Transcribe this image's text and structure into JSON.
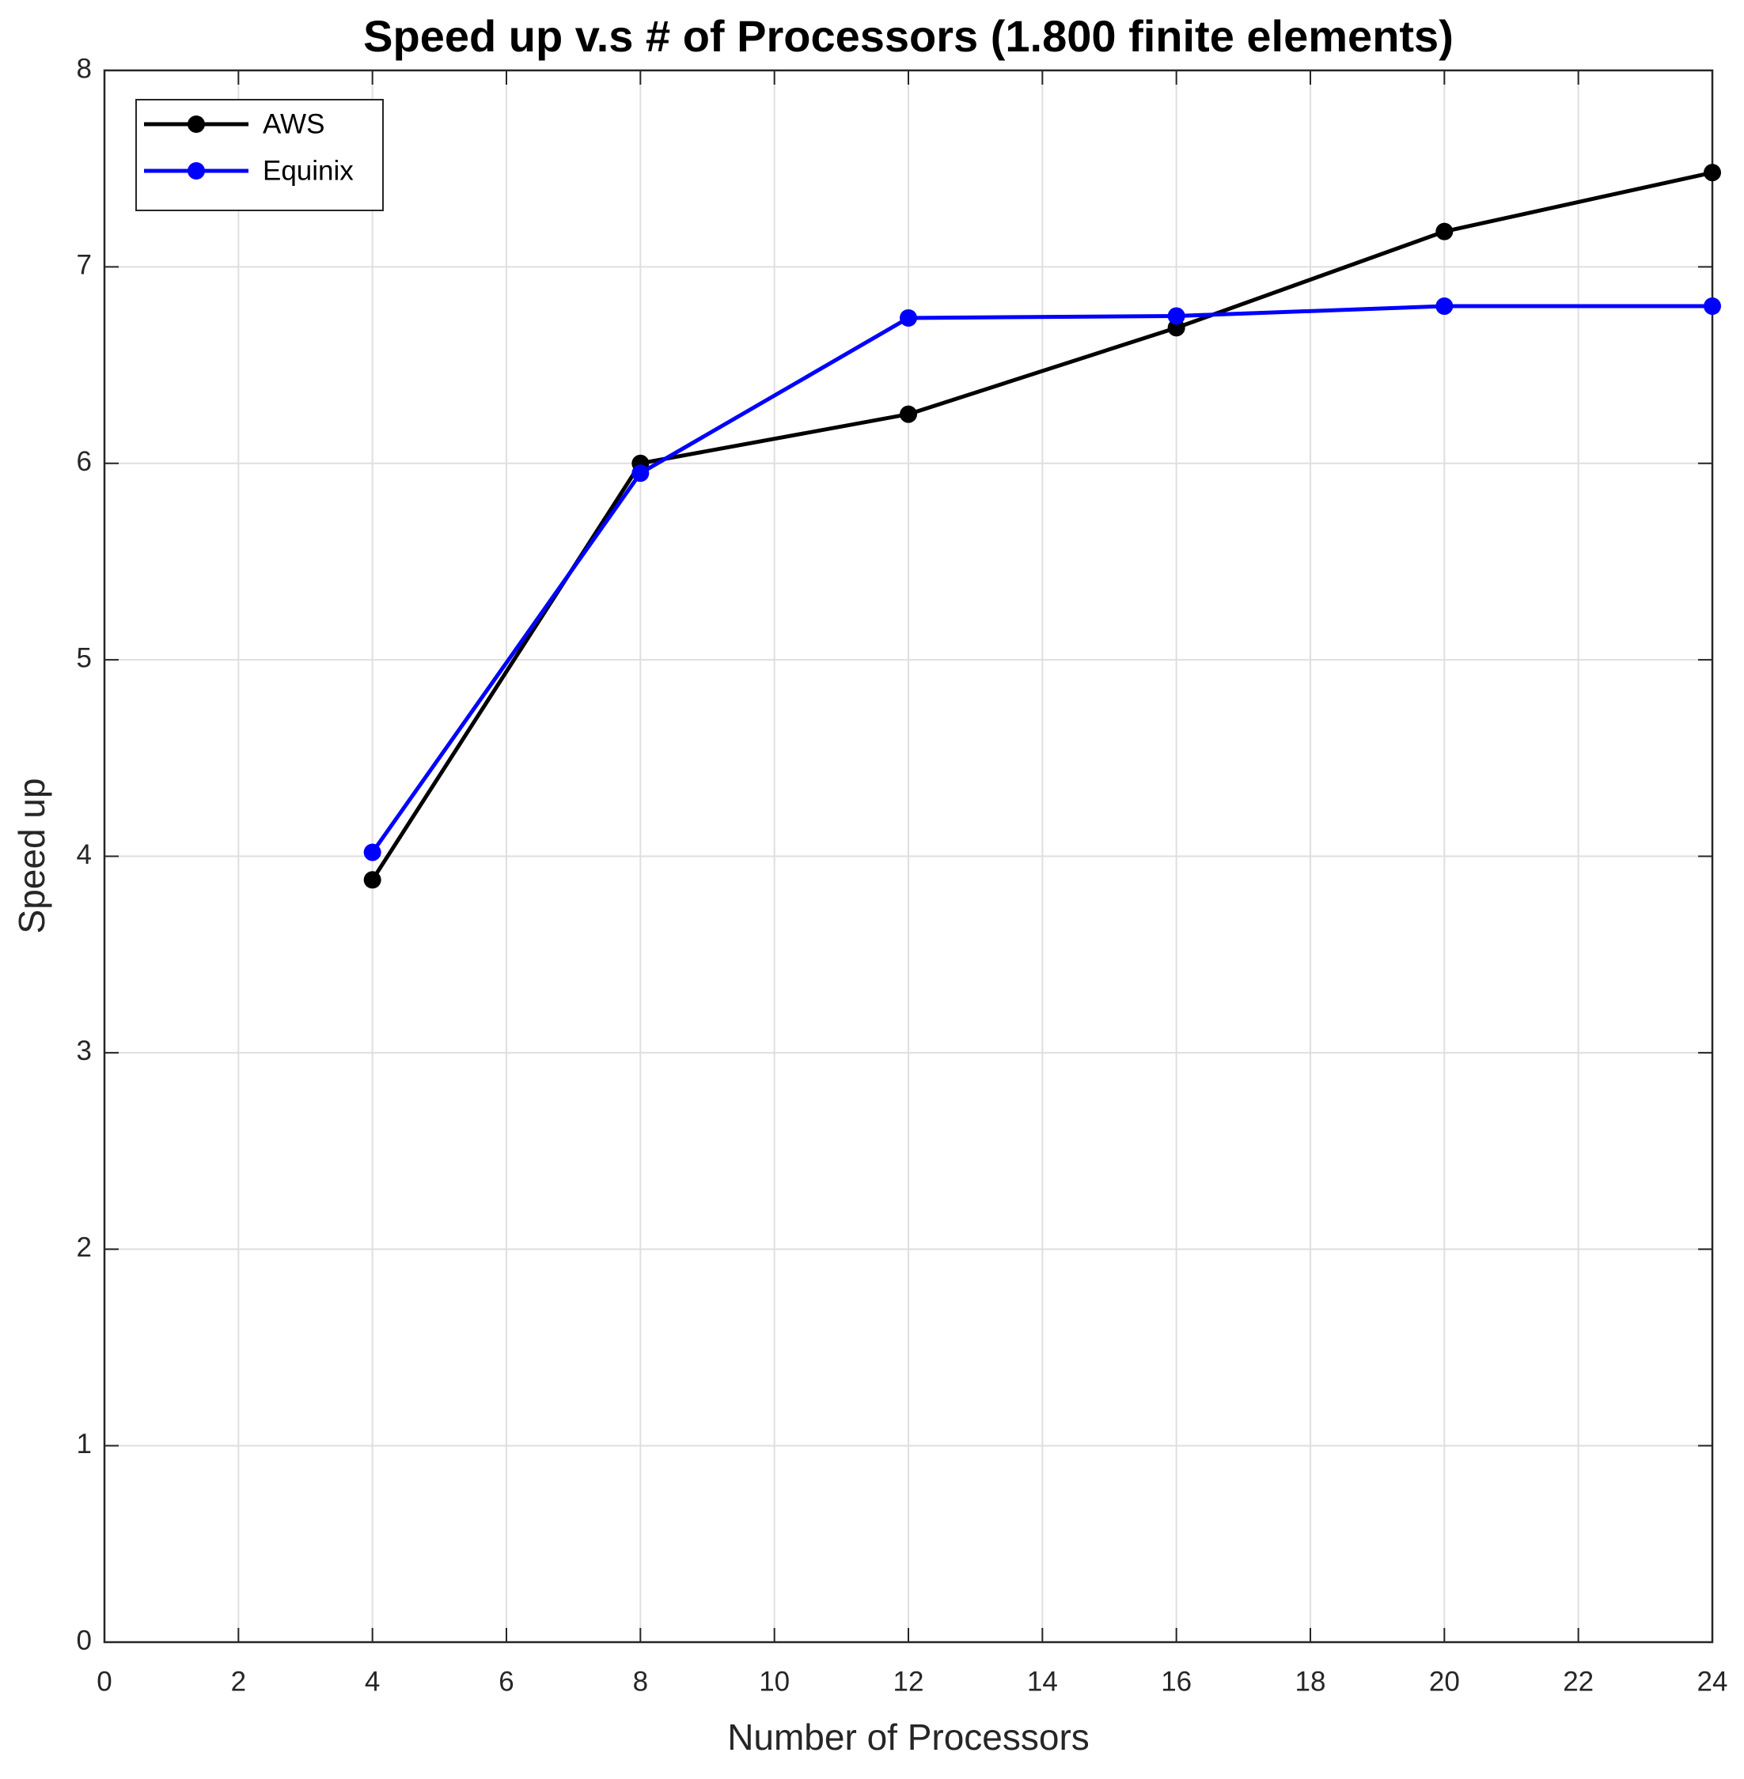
{
  "chart_data": {
    "type": "line",
    "title": "Speed up v.s # of Processors (1.800 finite elements)",
    "x_label": "Number of Processors",
    "y_label": "Speed up",
    "x": [
      4,
      8,
      12,
      16,
      20,
      24
    ],
    "series": [
      {
        "name": "AWS",
        "color": "#000000",
        "values": [
          3.88,
          6.0,
          6.25,
          6.69,
          7.18,
          7.48
        ]
      },
      {
        "name": "Equinix",
        "color": "#0000ff",
        "values": [
          4.02,
          5.95,
          6.74,
          6.75,
          6.8,
          6.8
        ]
      }
    ],
    "xlim": [
      0,
      24
    ],
    "xticks": [
      0,
      2,
      4,
      6,
      8,
      10,
      12,
      14,
      16,
      18,
      20,
      22,
      24
    ],
    "ylim": [
      0,
      8
    ],
    "yticks": [
      0,
      1,
      2,
      3,
      4,
      5,
      6,
      7,
      8
    ],
    "grid": true,
    "legend": "upper-left"
  }
}
